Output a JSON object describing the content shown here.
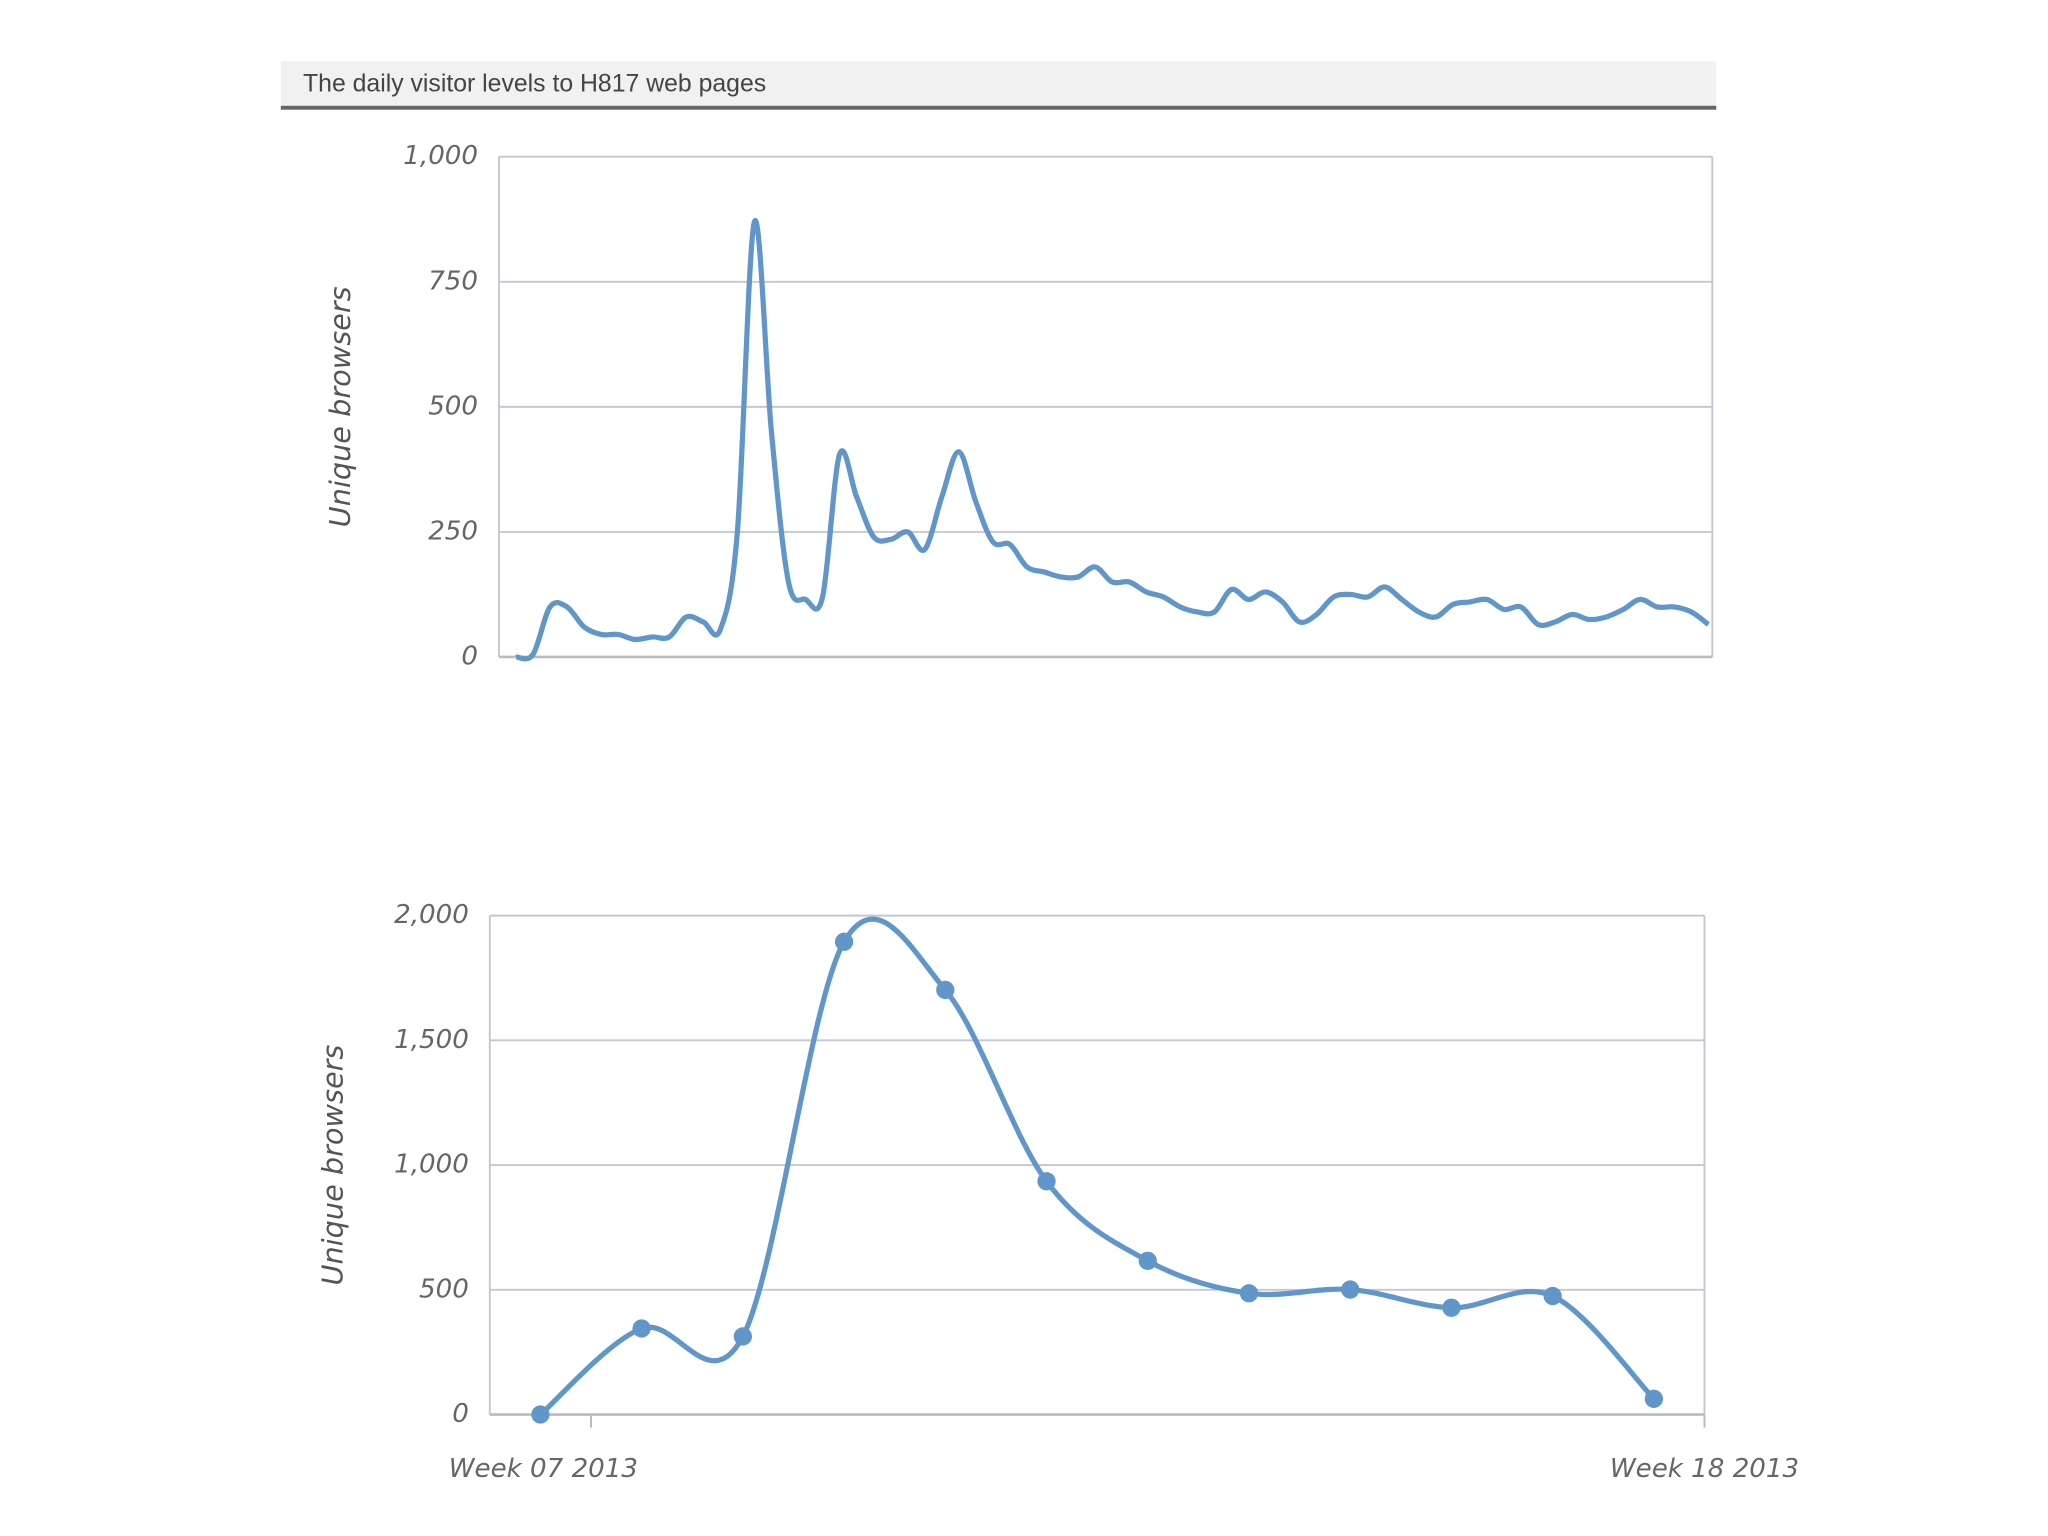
{
  "header": {
    "title": "The daily visitor levels to H817 web pages"
  },
  "chart_data": [
    {
      "type": "line",
      "ylabel": "Unique browsers",
      "color": "#6196c9",
      "markers": false,
      "grid": true,
      "values": [
        0,
        5,
        100,
        100,
        60,
        45,
        45,
        35,
        40,
        40,
        80,
        70,
        55,
        250,
        870,
        450,
        150,
        115,
        120,
        405,
        320,
        240,
        235,
        250,
        215,
        320,
        410,
        310,
        230,
        225,
        180,
        170,
        160,
        160,
        180,
        150,
        150,
        130,
        120,
        100,
        90,
        90,
        135,
        115,
        130,
        110,
        70,
        85,
        120,
        125,
        120,
        140,
        115,
        90,
        80,
        105,
        110,
        115,
        95,
        100,
        65,
        70,
        85,
        75,
        80,
        95,
        115,
        100,
        100,
        90,
        65
      ],
      "ylim": [
        0,
        1000
      ],
      "yticks": [
        0,
        250,
        500,
        750,
        {
          "value": 1000,
          "label": "1,000"
        }
      ]
    },
    {
      "type": "line",
      "ylabel": "Unique browsers",
      "color": "#6196c9",
      "markers": true,
      "grid": true,
      "x": [
        0,
        1,
        2,
        3,
        4,
        5,
        6,
        7,
        8,
        9,
        10,
        11
      ],
      "values": [
        0,
        345,
        313,
        1895,
        1702,
        935,
        616,
        486,
        501,
        428,
        475,
        63
      ],
      "xlim": [
        -0.5,
        11.5
      ],
      "xticks": [
        {
          "value": 0.5,
          "label": "Week 07 2013"
        },
        {
          "value": 11.5,
          "label": "Week 18 2013"
        }
      ],
      "ylim": [
        0,
        2000
      ],
      "yticks": [
        0,
        500,
        {
          "value": 1000,
          "label": "1,000"
        },
        {
          "value": 1500,
          "label": "1,500"
        },
        {
          "value": 2000,
          "label": "2,000"
        }
      ]
    }
  ]
}
